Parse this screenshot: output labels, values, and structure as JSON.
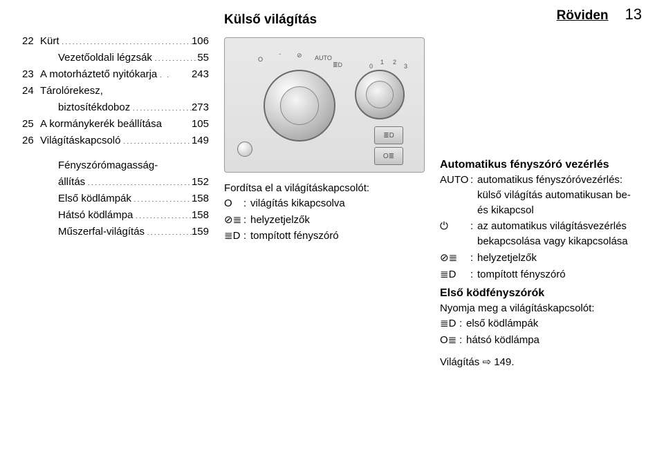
{
  "header": {
    "section": "Röviden",
    "page": "13"
  },
  "col1": {
    "toc": [
      {
        "num": "22",
        "label": "Kürt",
        "page": "106"
      },
      {
        "num": "",
        "label": "Vezetőoldali légzsák",
        "page": "55",
        "indent": true
      },
      {
        "num": "23",
        "label": "A motorháztető nyitókarja",
        "page": "243",
        "dots": " . . "
      },
      {
        "num": "24",
        "label": "Tárolórekesz,",
        "page": "",
        "noDots": true
      },
      {
        "num": "",
        "label": "biztosítékdoboz",
        "page": "273",
        "indent": true
      },
      {
        "num": "25",
        "label": "A kormánykerék beállítása",
        "page": "105",
        "space": true
      },
      {
        "num": "26",
        "label": "Világításkapcsoló",
        "page": "149"
      }
    ],
    "toc2": [
      {
        "label": "Fényszórómagasság-",
        "page": "",
        "noDots": true
      },
      {
        "label": "állítás",
        "page": "152"
      },
      {
        "label": "Első ködlámpák",
        "page": "158"
      },
      {
        "label": "Hátsó ködlámpa",
        "page": "158"
      },
      {
        "label": "Műszerfal-világítás",
        "page": "159"
      }
    ]
  },
  "col2": {
    "title": "Külső világítás",
    "figure": {
      "ticks_main": [
        "O",
        "ᐨ",
        "⊘",
        "AUTO",
        "≣D"
      ],
      "ticks_small": [
        "0",
        "1",
        "2",
        "3"
      ],
      "btn1": "≣D",
      "btn2": "O≣"
    },
    "intro": "Fordítsa el a világításkapcsolót:",
    "defs": [
      {
        "sym": "O",
        "text": "világítás kikapcsolva"
      },
      {
        "sym": "⊘≣",
        "text": "helyzetjelzők"
      },
      {
        "sym": "≣D",
        "text": "tompított fényszóró"
      }
    ]
  },
  "col3": {
    "h3a": "Automatikus fényszóró vezérlés",
    "defsA": [
      {
        "sym": "AUTO",
        "text": "automatikus fényszóróvezérlés: külső világítás automatikusan be- és kikapcsol"
      },
      {
        "sym": "⏻",
        "text": "az automatikus világítás­vezérlés bekapcsolása vagy kikapcsolása"
      },
      {
        "sym": "⊘≣",
        "text": "helyzetjelzők"
      },
      {
        "sym": "≣D",
        "text": "tompított fényszóró"
      }
    ],
    "h3b": "Első ködfényszórók",
    "introB": "Nyomja meg a világításkapcsolót:",
    "defsB": [
      {
        "sym": "≣D",
        "text": "első ködlámpák"
      },
      {
        "sym": "O≣",
        "text": "hátsó ködlámpa"
      }
    ],
    "footer_label": "Világítás",
    "footer_sym": "⇨",
    "footer_page": "149."
  },
  "style": {
    "dots": "................................................................"
  }
}
